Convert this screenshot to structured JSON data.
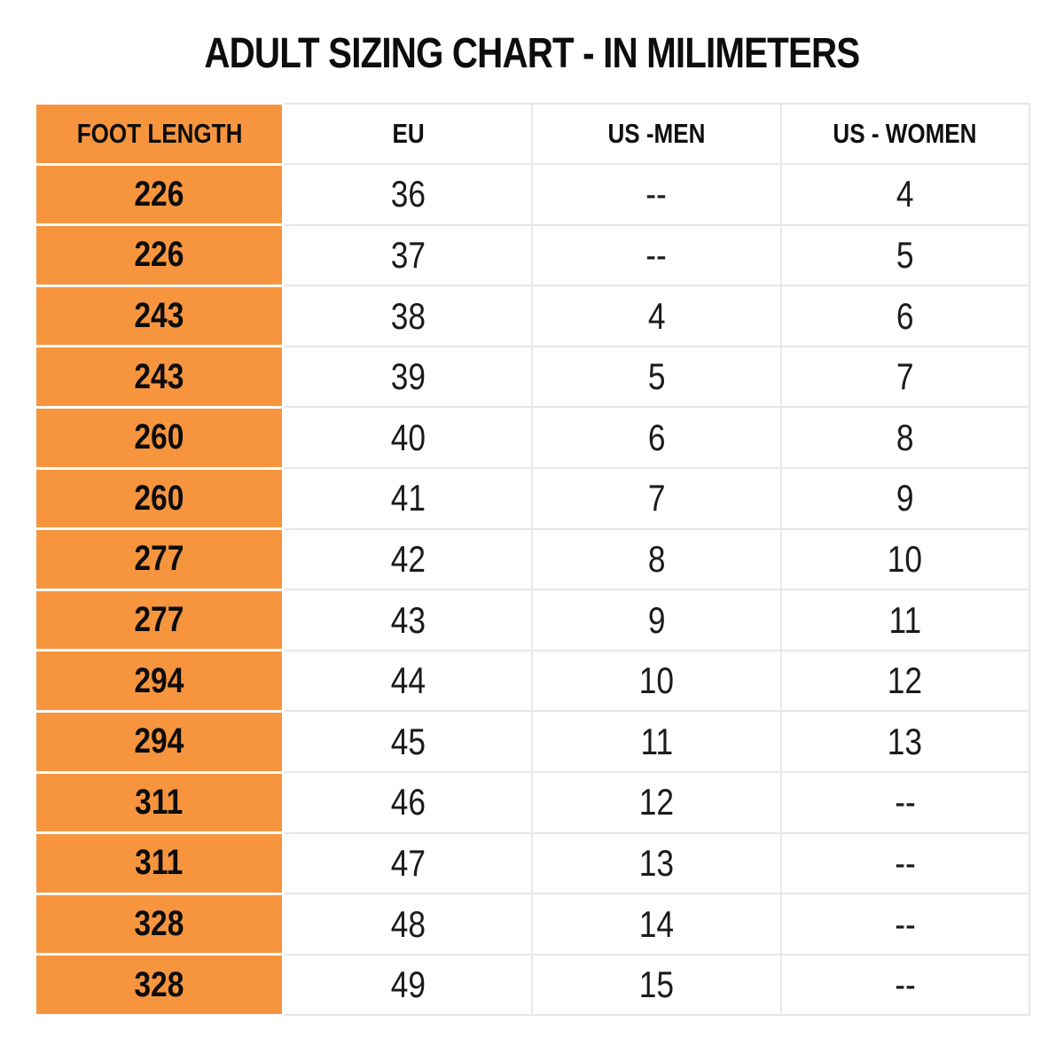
{
  "chart_data": {
    "type": "table",
    "title": "ADULT SIZING CHART - IN MILIMETERS",
    "columns": [
      "FOOT LENGTH",
      "EU",
      "US -MEN",
      "US - WOMEN"
    ],
    "rows": [
      [
        "226",
        "36",
        "--",
        "4"
      ],
      [
        "226",
        "37",
        "--",
        "5"
      ],
      [
        "243",
        "38",
        "4",
        "6"
      ],
      [
        "243",
        "39",
        "5",
        "7"
      ],
      [
        "260",
        "40",
        "6",
        "8"
      ],
      [
        "260",
        "41",
        "7",
        "9"
      ],
      [
        "277",
        "42",
        "8",
        "10"
      ],
      [
        "277",
        "43",
        "9",
        "11"
      ],
      [
        "294",
        "44",
        "10",
        "12"
      ],
      [
        "294",
        "45",
        "11",
        "13"
      ],
      [
        "311",
        "46",
        "12",
        "--"
      ],
      [
        "311",
        "47",
        "13",
        "--"
      ],
      [
        "328",
        "48",
        "14",
        "--"
      ],
      [
        "328",
        "49",
        "15",
        "--"
      ]
    ],
    "layout": {
      "header_column_highlighted": "FOOT LENGTH",
      "grid": "on"
    }
  },
  "colors": {
    "accent_orange": "#F7953F",
    "border_gray": "#E7E7E7",
    "text": "#141414",
    "background": "#FFFFFF"
  }
}
